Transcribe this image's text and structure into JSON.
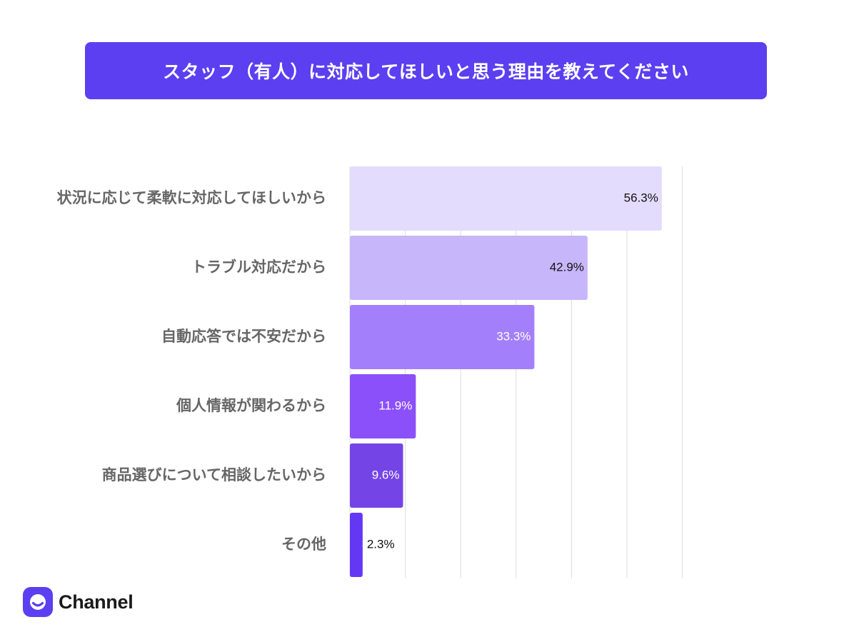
{
  "title": "スタッフ（有人）に対応してほしいと思う理由を教えてください",
  "logo": {
    "name": "Channel",
    "icon": "channel-talk-logo-icon",
    "color": "#5b3ff0"
  },
  "chart_data": {
    "type": "bar",
    "orientation": "horizontal",
    "categories": [
      "状況に応じて柔軟に対応してほしいから",
      "トラブル対応だから",
      "自動応答では不安だから",
      "個人情報が関わるから",
      "商品選びについて相談したいから",
      "その他"
    ],
    "values": [
      56.3,
      42.9,
      33.3,
      11.9,
      9.6,
      2.3
    ],
    "value_labels": [
      "56.3%",
      "42.9%",
      "33.3%",
      "11.9%",
      "9.6%",
      "2.3%"
    ],
    "unit": "%",
    "xlim": [
      0,
      60
    ],
    "grid": true,
    "colors": [
      "#e4dcfc",
      "#c8b6fb",
      "#a47ffb",
      "#8c50fa",
      "#7444e6",
      "#6437f5"
    ],
    "label_colors": [
      "#111111",
      "#111111",
      "#ffffff",
      "#ffffff",
      "#ffffff",
      "#111111"
    ]
  }
}
